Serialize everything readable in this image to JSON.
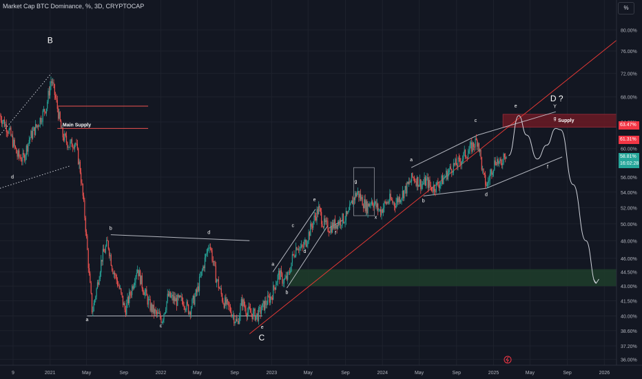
{
  "header": {
    "symbol_line": "Market Cap BTC Dominance, %, 3D, CRYPTOCAP"
  },
  "scale_button": "%",
  "badges": {
    "red_top": {
      "label": "63.47%",
      "color": "#f23645"
    },
    "red_low": {
      "label": "61.31%",
      "color": "#f23645"
    },
    "price": {
      "label": "58.81%",
      "timer": "16:02:28",
      "color": "#26a69a"
    }
  },
  "colors": {
    "background": "#131722",
    "up": "#26a69a",
    "down": "#ef5350",
    "trendline": "#e53935",
    "pattern": "#d1d4dc",
    "supply_zone": "#6b1a25",
    "demand_zone": "#1e3b2a"
  },
  "chart_data": {
    "type": "candlestick",
    "title": "Market Cap BTC Dominance, %, 3D, CRYPTOCAP",
    "y_axis": {
      "scale": "log",
      "range": [
        35.5,
        86.0
      ],
      "ticks": [
        "80.00%",
        "76.00%",
        "72.00%",
        "68.00%",
        "64.00%",
        "60.00%",
        "56.00%",
        "54.00%",
        "52.00%",
        "50.00%",
        "48.00%",
        "46.00%",
        "44.50%",
        "43.00%",
        "41.50%",
        "40.00%",
        "38.60%",
        "37.20%",
        "36.00%"
      ]
    },
    "x_axis": {
      "range": [
        "2020-07-20",
        "2026-02-10"
      ],
      "ticks": [
        {
          "label": "9",
          "date": "2020-09-01"
        },
        {
          "label": "2021",
          "date": "2021-01-01"
        },
        {
          "label": "May",
          "date": "2021-05-01"
        },
        {
          "label": "Sep",
          "date": "2021-09-01"
        },
        {
          "label": "2022",
          "date": "2022-01-01"
        },
        {
          "label": "May",
          "date": "2022-05-01"
        },
        {
          "label": "Sep",
          "date": "2022-09-01"
        },
        {
          "label": "2023",
          "date": "2023-01-01"
        },
        {
          "label": "May",
          "date": "2023-05-01"
        },
        {
          "label": "Sep",
          "date": "2023-09-01"
        },
        {
          "label": "2024",
          "date": "2024-01-01"
        },
        {
          "label": "May",
          "date": "2024-05-01"
        },
        {
          "label": "Sep",
          "date": "2024-09-01"
        },
        {
          "label": "2025",
          "date": "2025-01-01"
        },
        {
          "label": "May",
          "date": "2025-05-01"
        },
        {
          "label": "Sep",
          "date": "2025-09-01"
        },
        {
          "label": "2026",
          "date": "2026-01-01"
        }
      ]
    },
    "price_path": [
      [
        "2020-07-20",
        65.0
      ],
      [
        "2020-08-20",
        62.5
      ],
      [
        "2020-09-15",
        59.0
      ],
      [
        "2020-10-05",
        58.5
      ],
      [
        "2020-10-25",
        61.5
      ],
      [
        "2020-11-20",
        63.5
      ],
      [
        "2020-12-20",
        66.5
      ],
      [
        "2021-01-05",
        71.0
      ],
      [
        "2021-01-20",
        67.5
      ],
      [
        "2021-02-10",
        62.0
      ],
      [
        "2021-03-05",
        60.5
      ],
      [
        "2021-03-25",
        61.0
      ],
      [
        "2021-04-10",
        57.0
      ],
      [
        "2021-04-25",
        51.0
      ],
      [
        "2021-05-10",
        44.0
      ],
      [
        "2021-05-20",
        40.3
      ],
      [
        "2021-06-05",
        43.0
      ],
      [
        "2021-06-20",
        46.0
      ],
      [
        "2021-07-10",
        47.8
      ],
      [
        "2021-07-25",
        45.0
      ],
      [
        "2021-08-15",
        43.0
      ],
      [
        "2021-09-05",
        40.5
      ],
      [
        "2021-09-25",
        42.5
      ],
      [
        "2021-10-15",
        45.0
      ],
      [
        "2021-11-01",
        43.0
      ],
      [
        "2021-11-25",
        41.0
      ],
      [
        "2021-12-15",
        40.2
      ],
      [
        "2022-01-05",
        39.7
      ],
      [
        "2022-01-25",
        42.0
      ],
      [
        "2022-02-20",
        41.5
      ],
      [
        "2022-03-15",
        41.5
      ],
      [
        "2022-04-05",
        40.5
      ],
      [
        "2022-05-01",
        42.5
      ],
      [
        "2022-05-20",
        45.0
      ],
      [
        "2022-06-10",
        47.8
      ],
      [
        "2022-07-01",
        44.0
      ],
      [
        "2022-07-25",
        41.5
      ],
      [
        "2022-08-20",
        40.5
      ],
      [
        "2022-09-10",
        39.2
      ],
      [
        "2022-09-25",
        41.5
      ],
      [
        "2022-10-10",
        40.5
      ],
      [
        "2022-10-30",
        40.2
      ],
      [
        "2022-11-15",
        40.0
      ],
      [
        "2022-12-05",
        41.0
      ],
      [
        "2023-01-01",
        42.0
      ],
      [
        "2023-01-10",
        43.0
      ],
      [
        "2023-01-25",
        44.3
      ],
      [
        "2023-02-10",
        43.5
      ],
      [
        "2023-02-25",
        44.0
      ],
      [
        "2023-03-10",
        46.0
      ],
      [
        "2023-03-25",
        47.5
      ],
      [
        "2023-04-10",
        47.0
      ],
      [
        "2023-04-25",
        48.0
      ],
      [
        "2023-05-10",
        49.5
      ],
      [
        "2023-05-25",
        51.0
      ],
      [
        "2023-06-05",
        51.8
      ],
      [
        "2023-06-20",
        50.0
      ],
      [
        "2023-07-10",
        49.5
      ],
      [
        "2023-07-30",
        50.0
      ],
      [
        "2023-08-20",
        50.5
      ],
      [
        "2023-09-10",
        51.0
      ],
      [
        "2023-09-25",
        53.0
      ],
      [
        "2023-10-10",
        54.0
      ],
      [
        "2023-10-25",
        53.0
      ],
      [
        "2023-11-10",
        52.0
      ],
      [
        "2023-11-25",
        53.0
      ],
      [
        "2023-12-10",
        52.2
      ],
      [
        "2023-12-25",
        51.5
      ],
      [
        "2024-01-10",
        52.5
      ],
      [
        "2024-01-25",
        53.0
      ],
      [
        "2024-02-10",
        52.5
      ],
      [
        "2024-03-01",
        53.5
      ],
      [
        "2024-03-20",
        54.5
      ],
      [
        "2024-04-10",
        56.0
      ],
      [
        "2024-04-25",
        55.5
      ],
      [
        "2024-05-10",
        55.0
      ],
      [
        "2024-05-25",
        55.5
      ],
      [
        "2024-06-10",
        54.5
      ],
      [
        "2024-06-25",
        54.8
      ],
      [
        "2024-07-15",
        55.5
      ],
      [
        "2024-08-01",
        56.5
      ],
      [
        "2024-08-20",
        57.5
      ],
      [
        "2024-09-10",
        58.0
      ],
      [
        "2024-09-25",
        59.0
      ],
      [
        "2024-10-10",
        59.5
      ],
      [
        "2024-10-25",
        60.5
      ],
      [
        "2024-11-10",
        61.3
      ],
      [
        "2024-11-20",
        58.5
      ],
      [
        "2024-11-28",
        56.0
      ],
      [
        "2024-12-10",
        54.8
      ],
      [
        "2024-12-25",
        57.0
      ],
      [
        "2025-01-10",
        58.5
      ],
      [
        "2025-01-25",
        57.5
      ],
      [
        "2025-02-05",
        59.5
      ],
      [
        "2025-02-12",
        58.8
      ]
    ],
    "last_value": 58.81,
    "labels": [
      {
        "text": "B",
        "date": "2021-01-01",
        "value": 77.5,
        "size": "large"
      },
      {
        "text": "d",
        "date": "2020-08-30",
        "value": 55.8,
        "size": "small"
      },
      {
        "text": "Main Supply",
        "date": "2021-03-30",
        "value": 63.3,
        "size": "small"
      },
      {
        "text": "a",
        "date": "2021-05-03",
        "value": 39.5,
        "size": "small"
      },
      {
        "text": "b",
        "date": "2021-07-20",
        "value": 49.3,
        "size": "small"
      },
      {
        "text": "c",
        "date": "2022-01-01",
        "value": 38.9,
        "size": "small"
      },
      {
        "text": "d",
        "date": "2022-06-08",
        "value": 48.8,
        "size": "small"
      },
      {
        "text": "e",
        "date": "2022-12-01",
        "value": 38.8,
        "size": "small"
      },
      {
        "text": "C",
        "date": "2022-11-29",
        "value": 37.7,
        "size": "large"
      },
      {
        "text": "a",
        "date": "2023-01-05",
        "value": 45.2,
        "size": "small"
      },
      {
        "text": "b",
        "date": "2023-02-20",
        "value": 42.2,
        "size": "small"
      },
      {
        "text": "c",
        "date": "2023-03-12",
        "value": 49.6,
        "size": "small"
      },
      {
        "text": "d",
        "date": "2023-04-20",
        "value": 46.6,
        "size": "small"
      },
      {
        "text": "e",
        "date": "2023-05-22",
        "value": 52.8,
        "size": "small"
      },
      {
        "text": "f",
        "date": "2023-07-30",
        "value": 48.7,
        "size": "small"
      },
      {
        "text": "g",
        "date": "2023-10-05",
        "value": 55.2,
        "size": "small"
      },
      {
        "text": "x",
        "date": "2023-12-10",
        "value": 50.6,
        "size": "small"
      },
      {
        "text": "a",
        "date": "2024-04-05",
        "value": 58.2,
        "size": "small"
      },
      {
        "text": "b",
        "date": "2024-05-15",
        "value": 52.7,
        "size": "small"
      },
      {
        "text": "c",
        "date": "2024-11-03",
        "value": 64.0,
        "size": "small"
      },
      {
        "text": "d",
        "date": "2024-12-08",
        "value": 53.5,
        "size": "small"
      },
      {
        "text": "e",
        "date": "2025-03-15",
        "value": 66.3,
        "size": "small"
      },
      {
        "text": "Y",
        "date": "2025-07-22",
        "value": 66.2,
        "size": "small"
      },
      {
        "text": "D ?",
        "date": "2025-07-28",
        "value": 67.3,
        "size": "large"
      },
      {
        "text": "g",
        "date": "2025-07-22",
        "value": 64.3,
        "size": "small"
      },
      {
        "text": "Supply",
        "date": "2025-08-28",
        "value": 64.0,
        "size": "small"
      },
      {
        "text": "f",
        "date": "2025-06-28",
        "value": 57.2,
        "size": "small"
      }
    ],
    "zones": [
      {
        "name": "Main Supply",
        "from": "2021-01-25",
        "to": "2021-11-20",
        "top": 66.5,
        "bottom": 63.0,
        "style": "lines-red"
      },
      {
        "name": "Supply",
        "from": "2025-02-01",
        "to": "2026-02-10",
        "top": 65.2,
        "bottom": 63.2,
        "style": "fill-red"
      },
      {
        "name": "demand",
        "from": "2023-03-01",
        "to": "2026-02-10",
        "top": 44.8,
        "bottom": 43.0,
        "style": "fill-green"
      }
    ],
    "lines": [
      {
        "from": [
          "2020-07-20",
          62.0
        ],
        "to": [
          "2021-01-05",
          72.0
        ],
        "style": "dotted"
      },
      {
        "from": [
          "2020-07-20",
          54.5
        ],
        "to": [
          "2021-03-05",
          57.5
        ],
        "style": "dotted"
      },
      {
        "from": [
          "2021-05-03",
          40.0
        ],
        "to": [
          "2022-12-01",
          40.0
        ],
        "style": "white"
      },
      {
        "from": [
          "2021-07-20",
          48.7
        ],
        "to": [
          "2022-10-20",
          48.0
        ],
        "style": "white"
      },
      {
        "from": [
          "2022-10-20",
          38.3
        ],
        "to": [
          "2026-02-10",
          78.0
        ],
        "style": "red"
      },
      {
        "from": [
          "2023-01-05",
          44.5
        ],
        "to": [
          "2023-05-25",
          51.8
        ],
        "style": "white"
      },
      {
        "from": [
          "2023-02-20",
          42.8
        ],
        "to": [
          "2023-07-05",
          49.8
        ],
        "style": "white"
      },
      {
        "from": [
          "2023-07-10",
          49.5
        ],
        "to": [
          "2023-08-25",
          50.5
        ],
        "style": "white"
      },
      {
        "from": [
          "2024-04-05",
          57.3
        ],
        "to": [
          "2024-11-10",
          62.0
        ],
        "style": "white"
      },
      {
        "from": [
          "2024-05-15",
          53.5
        ],
        "to": [
          "2024-12-08",
          54.5
        ],
        "style": "white"
      },
      {
        "from": [
          "2024-11-10",
          62.0
        ],
        "to": [
          "2025-07-25",
          65.6
        ],
        "style": "white"
      },
      {
        "from": [
          "2024-12-08",
          54.5
        ],
        "to": [
          "2025-08-15",
          58.8
        ],
        "style": "white"
      }
    ],
    "box": {
      "from": "2023-09-28",
      "to": "2023-12-05",
      "top": 57.3,
      "bottom": 51.0
    },
    "projection": [
      [
        "2025-02-20",
        59.0
      ],
      [
        "2025-03-25",
        65.0
      ],
      [
        "2025-04-20",
        62.0
      ],
      [
        "2025-05-25",
        58.5
      ],
      [
        "2025-06-25",
        60.5
      ],
      [
        "2025-07-25",
        63.0
      ],
      [
        "2025-08-10",
        62.8
      ],
      [
        "2025-09-20",
        55.0
      ],
      [
        "2025-11-01",
        48.0
      ],
      [
        "2025-12-05",
        43.3
      ]
    ]
  }
}
